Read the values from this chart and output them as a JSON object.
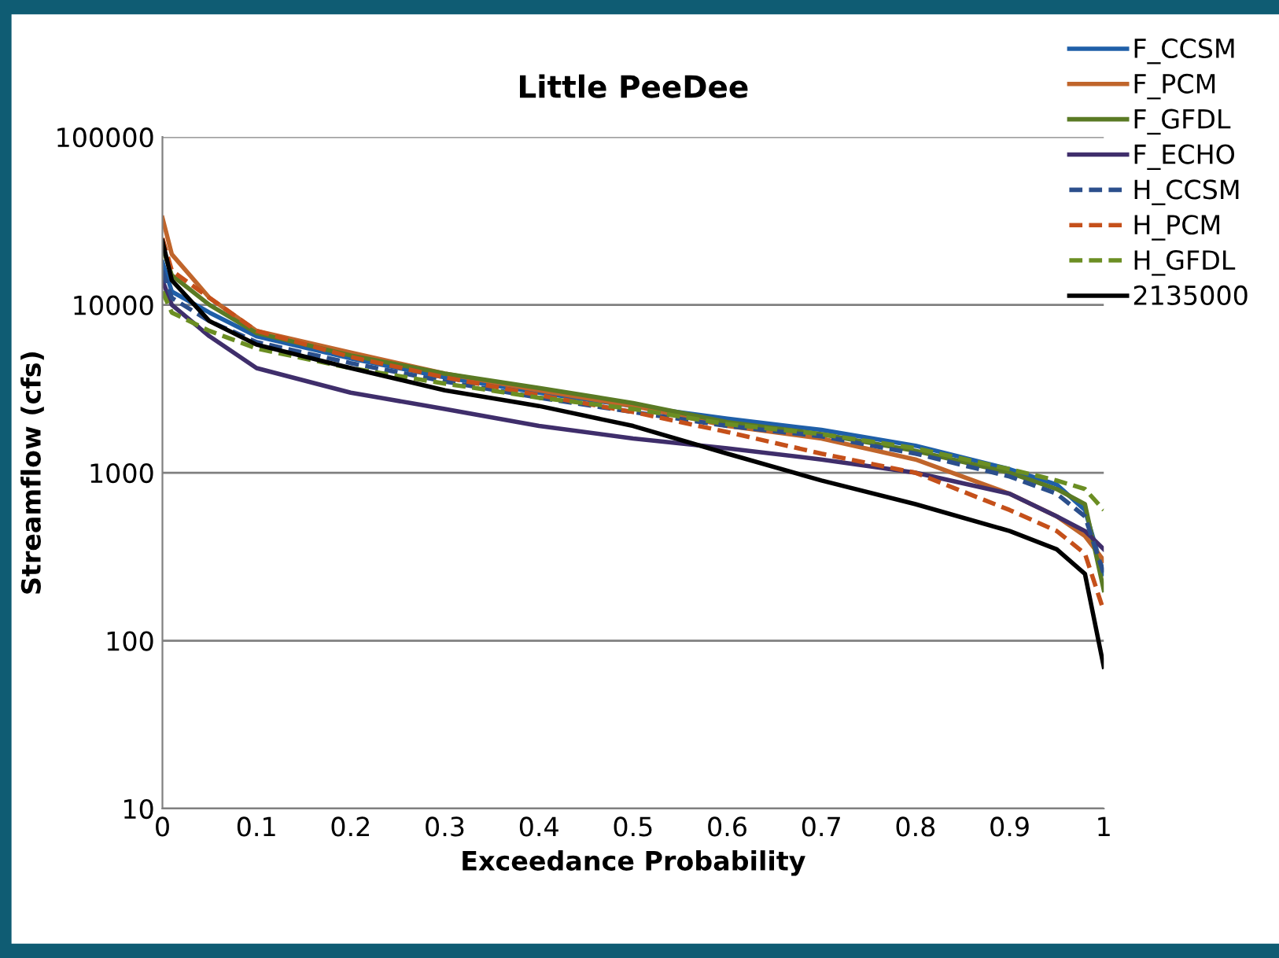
{
  "chart_data": {
    "type": "line",
    "title": "Little PeeDee",
    "xlabel": "Exceedance Probability",
    "ylabel": "Streamflow (cfs)",
    "x": [
      0,
      0.01,
      0.05,
      0.1,
      0.2,
      0.3,
      0.4,
      0.5,
      0.6,
      0.7,
      0.8,
      0.9,
      0.95,
      0.98,
      1.0
    ],
    "series": [
      {
        "name": "F_CCSM",
        "color": "#1f5fa8",
        "line_style": "solid",
        "values": [
          18000,
          12000,
          9000,
          6500,
          4800,
          3700,
          3000,
          2500,
          2100,
          1800,
          1450,
          1050,
          850,
          600,
          250
        ]
      },
      {
        "name": "F_PCM",
        "color": "#c0652b",
        "line_style": "solid",
        "values": [
          33000,
          20000,
          11000,
          7000,
          5200,
          3900,
          3100,
          2500,
          1900,
          1600,
          1200,
          750,
          550,
          420,
          300
        ]
      },
      {
        "name": "F_GFDL",
        "color": "#5a7a24",
        "line_style": "solid",
        "values": [
          22000,
          15000,
          10000,
          6800,
          5000,
          3900,
          3200,
          2600,
          2000,
          1700,
          1350,
          1000,
          800,
          650,
          200
        ]
      },
      {
        "name": "F_ECHO",
        "color": "#3f2e6b",
        "line_style": "solid",
        "values": [
          14000,
          10000,
          6500,
          4200,
          3000,
          2400,
          1900,
          1600,
          1400,
          1200,
          1000,
          750,
          550,
          450,
          350
        ]
      },
      {
        "name": "H_CCSM",
        "color": "#2b4f8c",
        "line_style": "dashed",
        "values": [
          16000,
          11000,
          8000,
          6000,
          4500,
          3500,
          2800,
          2300,
          1900,
          1650,
          1300,
          950,
          750,
          550,
          250
        ]
      },
      {
        "name": "H_PCM",
        "color": "#c5501a",
        "line_style": "dashed",
        "values": [
          25000,
          16000,
          11000,
          7000,
          4900,
          3700,
          2900,
          2300,
          1750,
          1300,
          1000,
          600,
          450,
          330,
          150
        ]
      },
      {
        "name": "H_GFDL",
        "color": "#6b8e23",
        "line_style": "dashed",
        "values": [
          12000,
          9000,
          7000,
          5500,
          4200,
          3400,
          2800,
          2400,
          1950,
          1700,
          1400,
          1050,
          900,
          800,
          600
        ]
      },
      {
        "name": "2135000",
        "color": "#000000",
        "line_style": "solid",
        "values": [
          24000,
          14000,
          8000,
          5800,
          4200,
          3100,
          2500,
          1900,
          1300,
          900,
          650,
          450,
          350,
          250,
          70
        ]
      }
    ],
    "xlim": [
      0,
      1
    ],
    "xticks": [
      0,
      0.1,
      0.2,
      0.3,
      0.4,
      0.5,
      0.6,
      0.7,
      0.8,
      0.9,
      1
    ],
    "ylim": [
      10,
      100000
    ],
    "yticks": [
      10,
      100,
      1000,
      10000,
      100000
    ],
    "log": "y",
    "grid": "y",
    "legend": "top right",
    "marker": "none"
  }
}
